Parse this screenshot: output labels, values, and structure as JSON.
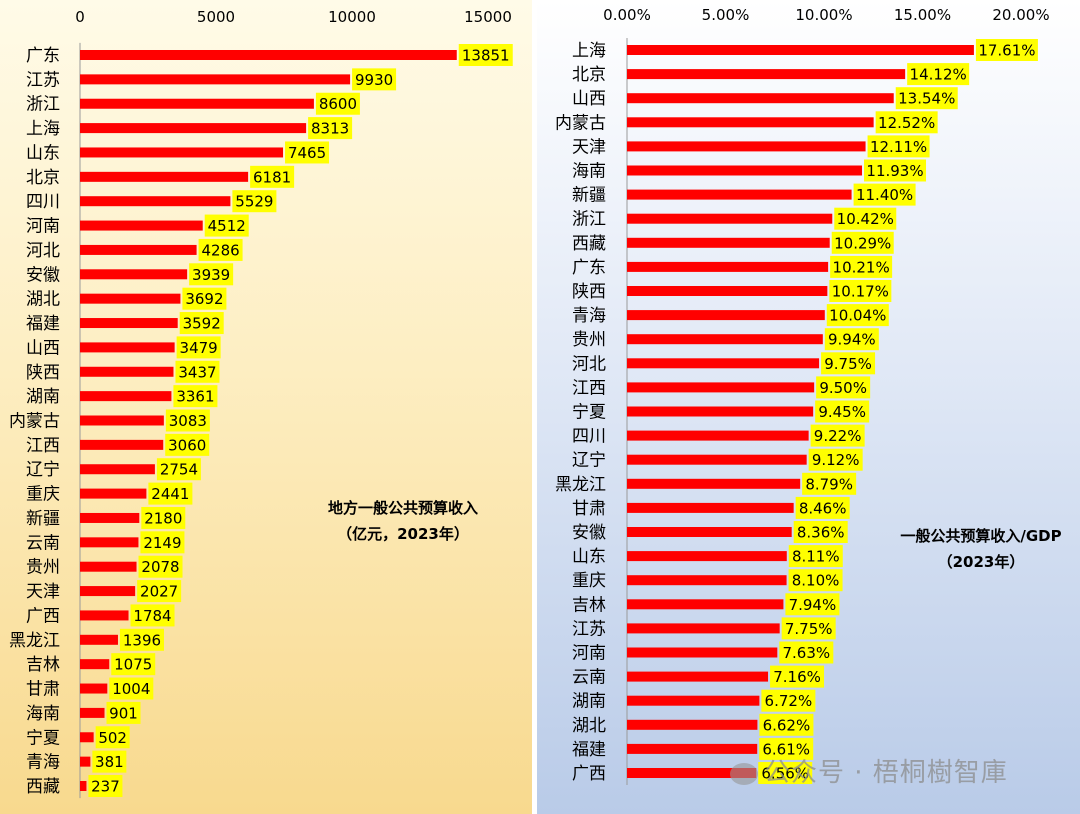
{
  "chart_data": [
    {
      "type": "bar",
      "orientation": "horizontal",
      "title": [
        "地方一般公共预算收入",
        "（亿元，2023年）"
      ],
      "xlim": [
        0,
        15000
      ],
      "xticks": [
        "0",
        "5000",
        "10000",
        "15000"
      ],
      "tick_values": [
        0,
        5000,
        10000,
        15000
      ],
      "categories": [
        "广东",
        "江苏",
        "浙江",
        "上海",
        "山东",
        "北京",
        "四川",
        "河南",
        "河北",
        "安徽",
        "湖北",
        "福建",
        "山西",
        "陕西",
        "湖南",
        "内蒙古",
        "江西",
        "辽宁",
        "重庆",
        "新疆",
        "云南",
        "贵州",
        "天津",
        "广西",
        "黑龙江",
        "吉林",
        "甘肃",
        "海南",
        "宁夏",
        "青海",
        "西藏"
      ],
      "values": [
        13851,
        9930,
        8600,
        8313,
        7465,
        6181,
        5529,
        4512,
        4286,
        3939,
        3692,
        3592,
        3479,
        3437,
        3361,
        3083,
        3060,
        2754,
        2441,
        2180,
        2149,
        2078,
        2027,
        1784,
        1396,
        1075,
        1004,
        901,
        502,
        381,
        237
      ],
      "labels": [
        "13851",
        "9930",
        "8600",
        "8313",
        "7465",
        "6181",
        "5529",
        "4512",
        "4286",
        "3939",
        "3692",
        "3592",
        "3479",
        "3437",
        "3361",
        "3083",
        "3060",
        "2754",
        "2441",
        "2180",
        "2149",
        "2078",
        "2027",
        "1784",
        "1396",
        "1075",
        "1004",
        "901",
        "502",
        "381",
        "237"
      ]
    },
    {
      "type": "bar",
      "orientation": "horizontal",
      "title": [
        "一般公共预算收入/GDP",
        "（2023年）"
      ],
      "xlim": [
        0,
        0.2
      ],
      "xticks": [
        "0.00%",
        "5.00%",
        "10.00%",
        "15.00%",
        "20.00%"
      ],
      "tick_values": [
        0,
        0.05,
        0.1,
        0.15,
        0.2
      ],
      "categories": [
        "上海",
        "北京",
        "山西",
        "内蒙古",
        "天津",
        "海南",
        "新疆",
        "浙江",
        "西藏",
        "广东",
        "陕西",
        "青海",
        "贵州",
        "河北",
        "江西",
        "宁夏",
        "四川",
        "辽宁",
        "黑龙江",
        "甘肃",
        "安徽",
        "山东",
        "重庆",
        "吉林",
        "江苏",
        "河南",
        "云南",
        "湖南",
        "湖北",
        "福建",
        "广西"
      ],
      "values": [
        0.1761,
        0.1412,
        0.1354,
        0.1252,
        0.1211,
        0.1193,
        0.114,
        0.1042,
        0.1029,
        0.1021,
        0.1017,
        0.1004,
        0.0994,
        0.0975,
        0.095,
        0.0945,
        0.0922,
        0.0912,
        0.0879,
        0.0846,
        0.0836,
        0.0811,
        0.081,
        0.0794,
        0.0775,
        0.0763,
        0.0716,
        0.0672,
        0.0662,
        0.0661,
        0.0656
      ],
      "labels": [
        "17.61%",
        "14.12%",
        "13.54%",
        "12.52%",
        "12.11%",
        "11.93%",
        "11.40%",
        "10.42%",
        "10.29%",
        "10.21%",
        "10.17%",
        "10.04%",
        "9.94%",
        "9.75%",
        "9.50%",
        "9.45%",
        "9.22%",
        "9.12%",
        "8.79%",
        "8.46%",
        "8.36%",
        "8.11%",
        "8.10%",
        "7.94%",
        "7.75%",
        "7.63%",
        "7.16%",
        "6.72%",
        "6.62%",
        "6.61%",
        "6.56%"
      ]
    }
  ],
  "colors": {
    "bar": "#ff0000",
    "label_bg": "#ffff00"
  },
  "watermark": "公众号 · 梧桐樹智庫"
}
